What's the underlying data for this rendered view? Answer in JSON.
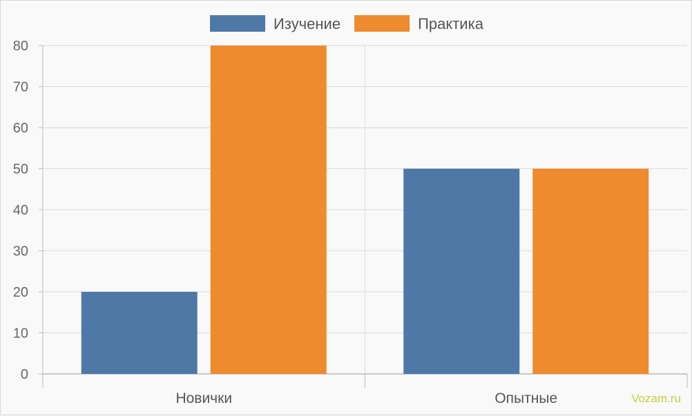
{
  "chart_data": {
    "type": "bar",
    "categories": [
      "Новички",
      "Опытные"
    ],
    "series": [
      {
        "name": "Изучение",
        "values": [
          20,
          50
        ],
        "color": "#4e79a7"
      },
      {
        "name": "Практика",
        "values": [
          80,
          50
        ],
        "color": "#ee8b2e"
      }
    ],
    "ylim": [
      0,
      80
    ],
    "yticks": [
      0,
      10,
      20,
      30,
      40,
      50,
      60,
      70,
      80
    ],
    "grid": true,
    "legend": "top-center"
  },
  "watermark": "Vozam.ru"
}
